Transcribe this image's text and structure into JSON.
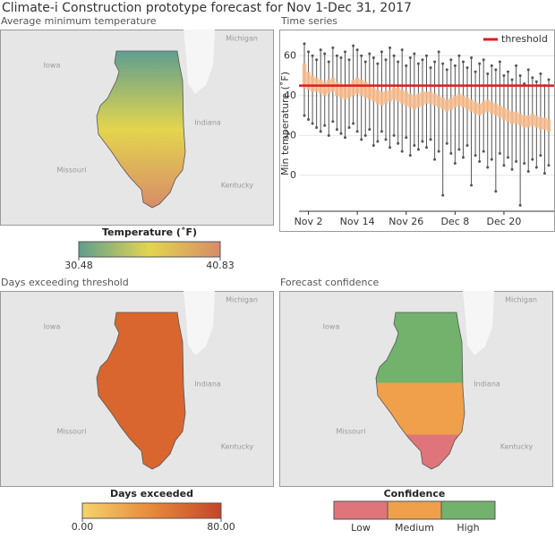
{
  "title": "Climate-i Construction prototype forecast for Nov 1-Dec 31, 2017",
  "map_labels": [
    "Iowa",
    "Michigan",
    "Indiana",
    "Missouri",
    "Kentucky"
  ],
  "chart_data": [
    {
      "type": "choropleth",
      "subtitle": "Average minimum temperature",
      "legend_title": "Temperature (˚F)",
      "colorbar_lim": [
        30.48,
        40.83
      ],
      "colorbar_ticks": [
        30.48,
        40.83
      ],
      "colors": [
        "#5f9e8f",
        "#e3d54e",
        "#d88b69"
      ]
    },
    {
      "type": "boxplot",
      "subtitle": "Time series",
      "ylabel": "Min temperature (˚F)",
      "x": [
        "Nov 1",
        "Nov 2",
        "Nov 3",
        "Nov 4",
        "Nov 5",
        "Nov 6",
        "Nov 7",
        "Nov 8",
        "Nov 9",
        "Nov 10",
        "Nov 11",
        "Nov 12",
        "Nov 13",
        "Nov 14",
        "Nov 15",
        "Nov 16",
        "Nov 17",
        "Nov 18",
        "Nov 19",
        "Nov 20",
        "Nov 21",
        "Nov 22",
        "Nov 23",
        "Nov 24",
        "Nov 25",
        "Nov 26",
        "Nov 27",
        "Nov 28",
        "Nov 29",
        "Nov 30",
        "Dec 1",
        "Dec 2",
        "Dec 3",
        "Dec 4",
        "Dec 5",
        "Dec 6",
        "Dec 7",
        "Dec 8",
        "Dec 9",
        "Dec 10",
        "Dec 11",
        "Dec 12",
        "Dec 13",
        "Dec 14",
        "Dec 15",
        "Dec 16",
        "Dec 17",
        "Dec 18",
        "Dec 19",
        "Dec 20",
        "Dec 21",
        "Dec 22",
        "Dec 23",
        "Dec 24",
        "Dec 25",
        "Dec 26",
        "Dec 27",
        "Dec 28",
        "Dec 29",
        "Dec 30",
        "Dec 31"
      ],
      "xticks": [
        "Nov 2",
        "Nov 14",
        "Nov 26",
        "Dec 8",
        "Dec 20"
      ],
      "ylim": [
        -18,
        70
      ],
      "yticks": [
        0,
        20,
        40,
        60
      ],
      "grid": true,
      "box_color": "#f6b98a",
      "whisker_color": "#555555",
      "threshold": {
        "name": "threshold",
        "value": 45,
        "color": "#e31a1c"
      },
      "low": [
        30,
        28,
        26,
        24,
        22,
        25,
        20,
        27,
        23,
        21,
        19,
        24,
        26,
        22,
        18,
        20,
        23,
        15,
        17,
        22,
        18,
        14,
        20,
        16,
        12,
        19,
        10,
        15,
        13,
        17,
        14,
        18,
        8,
        12,
        -10,
        16,
        11,
        6,
        13,
        9,
        15,
        -5,
        10,
        7,
        12,
        4,
        8,
        -8,
        11,
        5,
        9,
        3,
        7,
        -15,
        6,
        2,
        8,
        4,
        10,
        1,
        5
      ],
      "q1": [
        44,
        43,
        42,
        42,
        41,
        40,
        41,
        42,
        40,
        39,
        38,
        39,
        40,
        41,
        40,
        39,
        38,
        37,
        36,
        35,
        36,
        37,
        38,
        37,
        36,
        35,
        34,
        33,
        34,
        35,
        36,
        36,
        35,
        34,
        33,
        32,
        33,
        34,
        35,
        34,
        33,
        32,
        31,
        30,
        31,
        32,
        31,
        30,
        29,
        28,
        27,
        26,
        26,
        25,
        24,
        24,
        25,
        24,
        23,
        23,
        22
      ],
      "q3": [
        56,
        52,
        50,
        49,
        48,
        47,
        48,
        49,
        47,
        46,
        45,
        46,
        48,
        49,
        48,
        47,
        46,
        44,
        43,
        42,
        42,
        43,
        44,
        44,
        43,
        42,
        41,
        40,
        41,
        42,
        42,
        42,
        41,
        40,
        39,
        38,
        39,
        40,
        41,
        40,
        39,
        38,
        37,
        36,
        37,
        38,
        37,
        36,
        35,
        34,
        33,
        32,
        32,
        31,
        30,
        30,
        31,
        30,
        29,
        29,
        28
      ],
      "high": [
        66,
        62,
        60,
        58,
        63,
        61,
        57,
        64,
        60,
        59,
        62,
        58,
        65,
        63,
        60,
        57,
        61,
        59,
        56,
        62,
        58,
        64,
        60,
        57,
        63,
        55,
        59,
        61,
        56,
        58,
        60,
        54,
        57,
        62,
        56,
        53,
        58,
        55,
        60,
        57,
        54,
        59,
        52,
        56,
        58,
        51,
        55,
        53,
        57,
        50,
        52,
        48,
        55,
        50,
        46,
        53,
        49,
        47,
        51,
        45,
        48
      ]
    },
    {
      "type": "choropleth",
      "subtitle": "Days exceeding threshold",
      "legend_title": "Days exceeded",
      "fill": "#d9662f",
      "colorbar_lim": [
        0,
        80
      ],
      "colorbar_ticks": [
        {
          "value": 0,
          "label": "0.00"
        },
        {
          "value": 80,
          "label": "80.00"
        }
      ],
      "colors": [
        "#f6d36c",
        "#e7893c",
        "#c4452a"
      ]
    },
    {
      "type": "categorical-map",
      "subtitle": "Forecast confidence",
      "legend_title": "Confidence",
      "categories": [
        "Low",
        "Medium",
        "High"
      ],
      "colors": [
        "#e0747b",
        "#f0a04b",
        "#72b26c"
      ]
    }
  ]
}
